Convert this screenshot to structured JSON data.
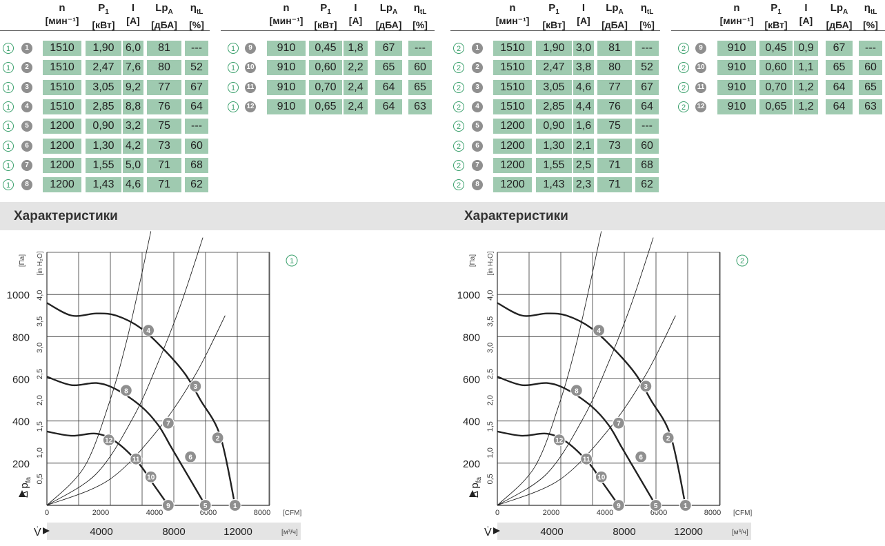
{
  "panels": [
    {
      "motor_symbol": "1",
      "section_title": "Характеристики",
      "table_headers": [
        {
          "name": "n",
          "sub": "",
          "unit": "[мин⁻¹]"
        },
        {
          "name": "P",
          "sub": "1",
          "unit": "[кВт]"
        },
        {
          "name": "I",
          "sub": "",
          "unit": "[А]"
        },
        {
          "name": "Lp",
          "sub": "A",
          "unit": "[дБА]"
        },
        {
          "name": "η",
          "sub": "tL",
          "unit": "[%]"
        }
      ],
      "rows_left": [
        {
          "motor": "1",
          "point": "1",
          "n": "1510",
          "p1": "1,90",
          "i": "6,0",
          "lpa": "81",
          "eta": "---"
        },
        {
          "motor": "1",
          "point": "2",
          "n": "1510",
          "p1": "2,47",
          "i": "7,6",
          "lpa": "80",
          "eta": "52"
        },
        {
          "motor": "1",
          "point": "3",
          "n": "1510",
          "p1": "3,05",
          "i": "9,2",
          "lpa": "77",
          "eta": "67"
        },
        {
          "motor": "1",
          "point": "4",
          "n": "1510",
          "p1": "2,85",
          "i": "8,8",
          "lpa": "76",
          "eta": "64"
        },
        {
          "motor": "1",
          "point": "5",
          "n": "1200",
          "p1": "0,90",
          "i": "3,2",
          "lpa": "75",
          "eta": "---"
        },
        {
          "motor": "1",
          "point": "6",
          "n": "1200",
          "p1": "1,30",
          "i": "4,2",
          "lpa": "73",
          "eta": "60"
        },
        {
          "motor": "1",
          "point": "7",
          "n": "1200",
          "p1": "1,55",
          "i": "5,0",
          "lpa": "71",
          "eta": "68"
        },
        {
          "motor": "1",
          "point": "8",
          "n": "1200",
          "p1": "1,43",
          "i": "4,6",
          "lpa": "71",
          "eta": "62"
        }
      ],
      "rows_right": [
        {
          "motor": "1",
          "point": "9",
          "n": "910",
          "p1": "0,45",
          "i": "1,8",
          "lpa": "67",
          "eta": "---"
        },
        {
          "motor": "1",
          "point": "10",
          "n": "910",
          "p1": "0,60",
          "i": "2,2",
          "lpa": "65",
          "eta": "60"
        },
        {
          "motor": "1",
          "point": "11",
          "n": "910",
          "p1": "0,70",
          "i": "2,4",
          "lpa": "64",
          "eta": "65"
        },
        {
          "motor": "1",
          "point": "12",
          "n": "910",
          "p1": "0,65",
          "i": "2,4",
          "lpa": "64",
          "eta": "63"
        }
      ]
    },
    {
      "motor_symbol": "2",
      "section_title": "Характеристики",
      "table_headers": [
        {
          "name": "n",
          "sub": "",
          "unit": "[мин⁻¹]"
        },
        {
          "name": "P",
          "sub": "1",
          "unit": "[кВт]"
        },
        {
          "name": "I",
          "sub": "",
          "unit": "[А]"
        },
        {
          "name": "Lp",
          "sub": "A",
          "unit": "[дБА]"
        },
        {
          "name": "η",
          "sub": "tL",
          "unit": "[%]"
        }
      ],
      "rows_left": [
        {
          "motor": "2",
          "point": "1",
          "n": "1510",
          "p1": "1,90",
          "i": "3,0",
          "lpa": "81",
          "eta": "---"
        },
        {
          "motor": "2",
          "point": "2",
          "n": "1510",
          "p1": "2,47",
          "i": "3,8",
          "lpa": "80",
          "eta": "52"
        },
        {
          "motor": "2",
          "point": "3",
          "n": "1510",
          "p1": "3,05",
          "i": "4,6",
          "lpa": "77",
          "eta": "67"
        },
        {
          "motor": "2",
          "point": "4",
          "n": "1510",
          "p1": "2,85",
          "i": "4,4",
          "lpa": "76",
          "eta": "64"
        },
        {
          "motor": "2",
          "point": "5",
          "n": "1200",
          "p1": "0,90",
          "i": "1,6",
          "lpa": "75",
          "eta": "---"
        },
        {
          "motor": "2",
          "point": "6",
          "n": "1200",
          "p1": "1,30",
          "i": "2,1",
          "lpa": "73",
          "eta": "60"
        },
        {
          "motor": "2",
          "point": "7",
          "n": "1200",
          "p1": "1,55",
          "i": "2,5",
          "lpa": "71",
          "eta": "68"
        },
        {
          "motor": "2",
          "point": "8",
          "n": "1200",
          "p1": "1,43",
          "i": "2,3",
          "lpa": "71",
          "eta": "62"
        }
      ],
      "rows_right": [
        {
          "motor": "2",
          "point": "9",
          "n": "910",
          "p1": "0,45",
          "i": "0,9",
          "lpa": "67",
          "eta": "---"
        },
        {
          "motor": "2",
          "point": "10",
          "n": "910",
          "p1": "0,60",
          "i": "1,1",
          "lpa": "65",
          "eta": "60"
        },
        {
          "motor": "2",
          "point": "11",
          "n": "910",
          "p1": "0,70",
          "i": "1,2",
          "lpa": "64",
          "eta": "65"
        },
        {
          "motor": "2",
          "point": "12",
          "n": "910",
          "p1": "0,65",
          "i": "1,2",
          "lpa": "64",
          "eta": "63"
        }
      ]
    }
  ],
  "chart_data": [
    {
      "type": "line",
      "panel_symbol": "1",
      "ylabel": "Δ pfa",
      "ylabel_main": "Δ p",
      "ylabel_sub": "fa",
      "yunit_pa": "[Па]",
      "yunit_inh2o": "[in H₂O]",
      "xlabel": "V̇",
      "xunit_m3h": "[м³/ч]",
      "xunit_cfm": "[CFM]",
      "x_m3h_ticks": [
        "4000",
        "8000",
        "12000"
      ],
      "x_cfm_ticks": [
        "0",
        "2000",
        "4000",
        "6000",
        "8000"
      ],
      "y_pa_ticks": [
        "200",
        "400",
        "600",
        "800",
        "1000"
      ],
      "y_inh2o_ticks": [
        "0,5",
        "1,0",
        "1,5",
        "2,0",
        "2,5",
        "3,0",
        "3,5",
        "4,0"
      ],
      "xlim_cfm": [
        0,
        9000
      ],
      "ylim_pa": [
        0,
        1200
      ],
      "grid": true,
      "series": [
        {
          "x": [
            0,
            1000,
            2000,
            2800,
            3800,
            4800,
            5600,
            6200,
            7000,
            7600
          ],
          "y": [
            960,
            900,
            910,
            900,
            840,
            730,
            620,
            500,
            330,
            0
          ]
        },
        {
          "x": [
            0,
            1000,
            2000,
            2800,
            3800,
            4500,
            5000,
            5400,
            6400
          ],
          "y": [
            610,
            570,
            580,
            550,
            470,
            380,
            280,
            200,
            0
          ]
        },
        {
          "x": [
            0,
            1000,
            2000,
            2800,
            3700,
            4300,
            4900
          ],
          "y": [
            350,
            330,
            340,
            300,
            200,
            100,
            0
          ]
        }
      ],
      "system_curves": [
        {
          "x": [
            0,
            1500,
            2500,
            3200,
            3800,
            4200
          ],
          "y": [
            0,
            180,
            480,
            770,
            1080,
            1300
          ]
        },
        {
          "x": [
            0,
            2000,
            3500,
            4500,
            5400,
            6300
          ],
          "y": [
            0,
            150,
            420,
            680,
            950,
            1270
          ]
        },
        {
          "x": [
            0,
            2500,
            4500,
            6000,
            7200
          ],
          "y": [
            0,
            120,
            360,
            620,
            900
          ]
        }
      ],
      "points": [
        {
          "label": "1",
          "x": 7600,
          "y": 0
        },
        {
          "label": "2",
          "x": 6900,
          "y": 320
        },
        {
          "label": "3",
          "x": 6000,
          "y": 565
        },
        {
          "label": "4",
          "x": 4100,
          "y": 830
        },
        {
          "label": "5",
          "x": 6400,
          "y": 0
        },
        {
          "label": "6",
          "x": 5800,
          "y": 230
        },
        {
          "label": "7",
          "x": 4900,
          "y": 390
        },
        {
          "label": "8",
          "x": 3200,
          "y": 545
        },
        {
          "label": "9",
          "x": 4900,
          "y": 0
        },
        {
          "label": "10",
          "x": 4200,
          "y": 135
        },
        {
          "label": "11",
          "x": 3600,
          "y": 220
        },
        {
          "label": "12",
          "x": 2500,
          "y": 310
        }
      ]
    },
    {
      "type": "line",
      "panel_symbol": "2",
      "ylabel": "Δ pfa",
      "ylabel_main": "Δ p",
      "ylabel_sub": "fa",
      "yunit_pa": "[Па]",
      "yunit_inh2o": "[in H₂O]",
      "xlabel": "V̇",
      "xunit_m3h": "[м³/ч]",
      "xunit_cfm": "[CFM]",
      "x_m3h_ticks": [
        "4000",
        "8000",
        "12000"
      ],
      "x_cfm_ticks": [
        "0",
        "2000",
        "4000",
        "6000",
        "8000"
      ],
      "y_pa_ticks": [
        "200",
        "400",
        "600",
        "800",
        "1000"
      ],
      "y_inh2o_ticks": [
        "0,5",
        "1,0",
        "1,5",
        "2,0",
        "2,5",
        "3,0",
        "3,5",
        "4,0"
      ],
      "xlim_cfm": [
        0,
        9000
      ],
      "ylim_pa": [
        0,
        1200
      ],
      "grid": true,
      "series": [
        {
          "x": [
            0,
            1000,
            2000,
            2800,
            3800,
            4800,
            5600,
            6200,
            7000,
            7600
          ],
          "y": [
            960,
            900,
            910,
            900,
            840,
            730,
            620,
            500,
            330,
            0
          ]
        },
        {
          "x": [
            0,
            1000,
            2000,
            2800,
            3800,
            4500,
            5000,
            5400,
            6400
          ],
          "y": [
            610,
            570,
            580,
            550,
            470,
            380,
            280,
            200,
            0
          ]
        },
        {
          "x": [
            0,
            1000,
            2000,
            2800,
            3700,
            4300,
            4900
          ],
          "y": [
            350,
            330,
            340,
            300,
            200,
            100,
            0
          ]
        }
      ],
      "system_curves": [
        {
          "x": [
            0,
            1500,
            2500,
            3200,
            3800,
            4200
          ],
          "y": [
            0,
            180,
            480,
            770,
            1080,
            1300
          ]
        },
        {
          "x": [
            0,
            2000,
            3500,
            4500,
            5400,
            6300
          ],
          "y": [
            0,
            150,
            420,
            680,
            950,
            1270
          ]
        },
        {
          "x": [
            0,
            2500,
            4500,
            6000,
            7200
          ],
          "y": [
            0,
            120,
            360,
            620,
            900
          ]
        }
      ],
      "points": [
        {
          "label": "1",
          "x": 7600,
          "y": 0
        },
        {
          "label": "2",
          "x": 6900,
          "y": 320
        },
        {
          "label": "3",
          "x": 6000,
          "y": 565
        },
        {
          "label": "4",
          "x": 4100,
          "y": 830
        },
        {
          "label": "5",
          "x": 6400,
          "y": 0
        },
        {
          "label": "6",
          "x": 5800,
          "y": 230
        },
        {
          "label": "7",
          "x": 4900,
          "y": 390
        },
        {
          "label": "8",
          "x": 3200,
          "y": 545
        },
        {
          "label": "9",
          "x": 4900,
          "y": 0
        },
        {
          "label": "10",
          "x": 4200,
          "y": 135
        },
        {
          "label": "11",
          "x": 3600,
          "y": 220
        },
        {
          "label": "12",
          "x": 2500,
          "y": 310
        }
      ]
    }
  ],
  "colors": {
    "cell_bg": "#9fcab0",
    "symbol_green": "#3aa06c",
    "point_grey": "#8f8f8f",
    "band_bg": "#e4e4e4",
    "xbar_bg": "#e4e4e4"
  }
}
